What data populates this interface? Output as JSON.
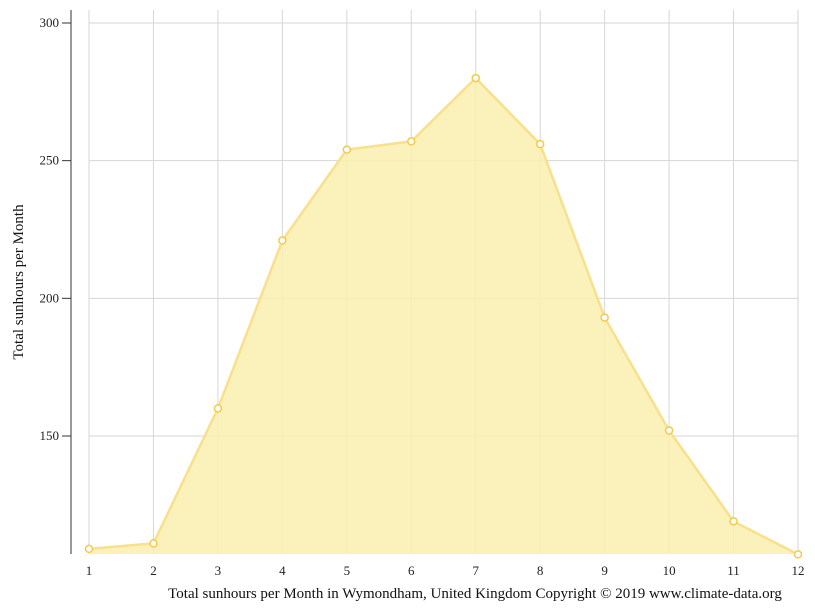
{
  "chart_data": {
    "type": "area",
    "title": "",
    "caption": "Total sunhours per Month in Wymondham, United Kingdom Copyright © 2019 www.climate-data.org",
    "xlabel": "",
    "ylabel": "Total sunhours per Month",
    "categories": [
      "1",
      "2",
      "3",
      "4",
      "5",
      "6",
      "7",
      "8",
      "9",
      "10",
      "11",
      "12"
    ],
    "series": [
      {
        "name": "Total sunhours per Month",
        "values": [
          109,
          111,
          160,
          221,
          254,
          257,
          280,
          256,
          193,
          152,
          119,
          107
        ]
      }
    ],
    "yticks": [
      150,
      200,
      250,
      300
    ],
    "ylim": [
      107,
      305
    ],
    "grid": true,
    "legend": "none",
    "colors": {
      "fill": "#FAEEAF",
      "line": "#F8E08C",
      "marker_stroke": "#F2CB4C",
      "marker_fill": "#ffffff",
      "grid": "#d6d6d6",
      "axis": "#555555"
    }
  }
}
